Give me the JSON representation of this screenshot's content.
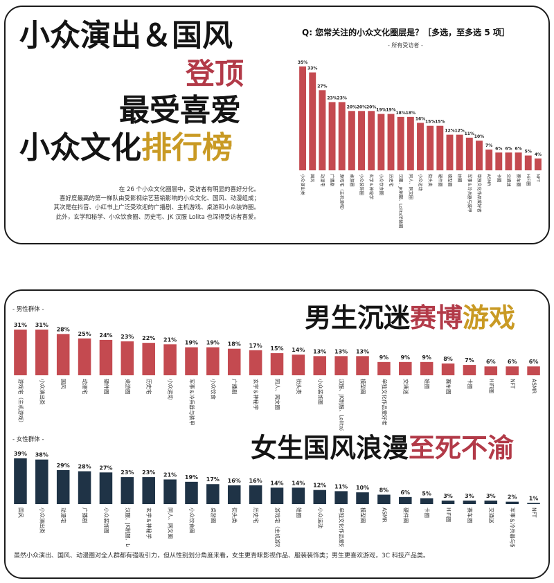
{
  "top_panel": {
    "headline": {
      "line1": "小众演出＆国风",
      "line2": "登顶",
      "line3": "最受喜爱",
      "line4_a": "小众文化",
      "line4_b": "排行榜"
    },
    "intro_lines": [
      "在 26 个小众文化圈层中，受访者有明显的喜好分化。",
      "喜好度最高的第一梯队由受影视综艺营销影响的小众文化、国风、动漫组成；",
      "其次是在抖音、小红书上广泛受欢迎的广播剧、主机游戏、桌游和小众装饰圈。",
      "此外，玄学和秘学、小众饮食圈、历史宅、JK 汉服 Lolita 也深得受访者喜爱。"
    ],
    "question": "Q: 您常关注的小众文化圈层是？［多选，至多选 5 项］",
    "subtitle": "- 所有受访者 -"
  },
  "bottom_panel": {
    "male_label": "- 男性群体 -",
    "male_headline_a": "男生沉迷",
    "male_headline_b": "赛博",
    "male_headline_c": "游戏",
    "female_label": "- 女性群体 -",
    "female_headline_a": "女生国风浪漫",
    "female_headline_b": "至死不渝",
    "footer": "虽然小众演出、国风、动漫圈对全人群都有强吸引力，但从性别划分角度来看，女生更青睐影视作品、服装装饰类；男生更喜欢游戏，3C 科技产品类。"
  },
  "colors": {
    "red_bar": "#c44a50",
    "navy_bar": "#1f3346",
    "headline_red": "#b23a48",
    "headline_gold": "#c99a24"
  },
  "chart_data": [
    {
      "id": "all",
      "type": "bar",
      "subtitle": "- 所有受访者 -",
      "unit": "%",
      "ylim": [
        0,
        35
      ],
      "categories": [
        "小众演出类",
        "国风",
        "动漫宅",
        "广播剧",
        "游戏宅（主机游戏）",
        "桌游圈",
        "小众装饰圈",
        "玄学＆神秘学",
        "小众饮食圈",
        "历史宅",
        "汉服、JK制服、Lolita洋装圈",
        "同人、网文圈",
        "小众运动",
        "街头类",
        "硬件圈",
        "模型圈",
        "娃圈",
        "军事＆冷兵器与装甲",
        "单独文化作品爱好者",
        "ASMR",
        "卡圈",
        "交通迷",
        "赛车圈",
        "HiFi圈",
        "NFT"
      ],
      "values": [
        35,
        33,
        27,
        23,
        23,
        20,
        20,
        20,
        19,
        19,
        18,
        18,
        16,
        15,
        15,
        12,
        12,
        11,
        10,
        7,
        6,
        6,
        6,
        5,
        4
      ]
    },
    {
      "id": "male",
      "type": "bar",
      "title": "- 男性群体 -",
      "unit": "%",
      "ylim": [
        0,
        31
      ],
      "categories": [
        "游戏宅（主机游戏）",
        "小众演出类",
        "国风",
        "动漫宅",
        "硬件圈",
        "桌游圈",
        "历史宅",
        "小众运动",
        "军事＆冷兵器与装甲",
        "小众饮食",
        "广播剧",
        "玄学＆神秘学",
        "同人、网文圈",
        "街头类",
        "小众装饰圈",
        "汉服、JK制服、Lolita洋装圈",
        "模型圈",
        "单独文化作品爱好者",
        "交通迷",
        "娃圈",
        "赛车圈",
        "卡圈",
        "HiFi圈",
        "NFT",
        "ASMR"
      ],
      "values": [
        31,
        31,
        28,
        25,
        24,
        23,
        22,
        21,
        19,
        19,
        18,
        17,
        15,
        14,
        13,
        13,
        13,
        9,
        9,
        9,
        8,
        7,
        6,
        6,
        6
      ]
    },
    {
      "id": "female",
      "type": "bar",
      "title": "- 女性群体 -",
      "unit": "%",
      "ylim": [
        0,
        39
      ],
      "categories": [
        "国风",
        "小众演出类",
        "动漫宅",
        "广播剧",
        "小众装饰圈",
        "汉服、JK制服、Lolita洋装圈",
        "玄学＆神秘学",
        "同人、网文圈",
        "小众饮食圈",
        "桌游圈",
        "街头类",
        "历史宅",
        "游戏宅（主机游戏）",
        "娃圈",
        "小众运动",
        "单独文化作品爱好者",
        "模型圈",
        "ASMR",
        "硬件圈",
        "卡圈",
        "HiFi圈",
        "赛车圈",
        "交通迷",
        "军事＆冷兵器与装甲",
        "NFT"
      ],
      "values": [
        39,
        38,
        29,
        28,
        27,
        23,
        23,
        21,
        19,
        17,
        16,
        16,
        14,
        14,
        12,
        11,
        10,
        8,
        6,
        5,
        3,
        3,
        3,
        2,
        1
      ]
    }
  ]
}
